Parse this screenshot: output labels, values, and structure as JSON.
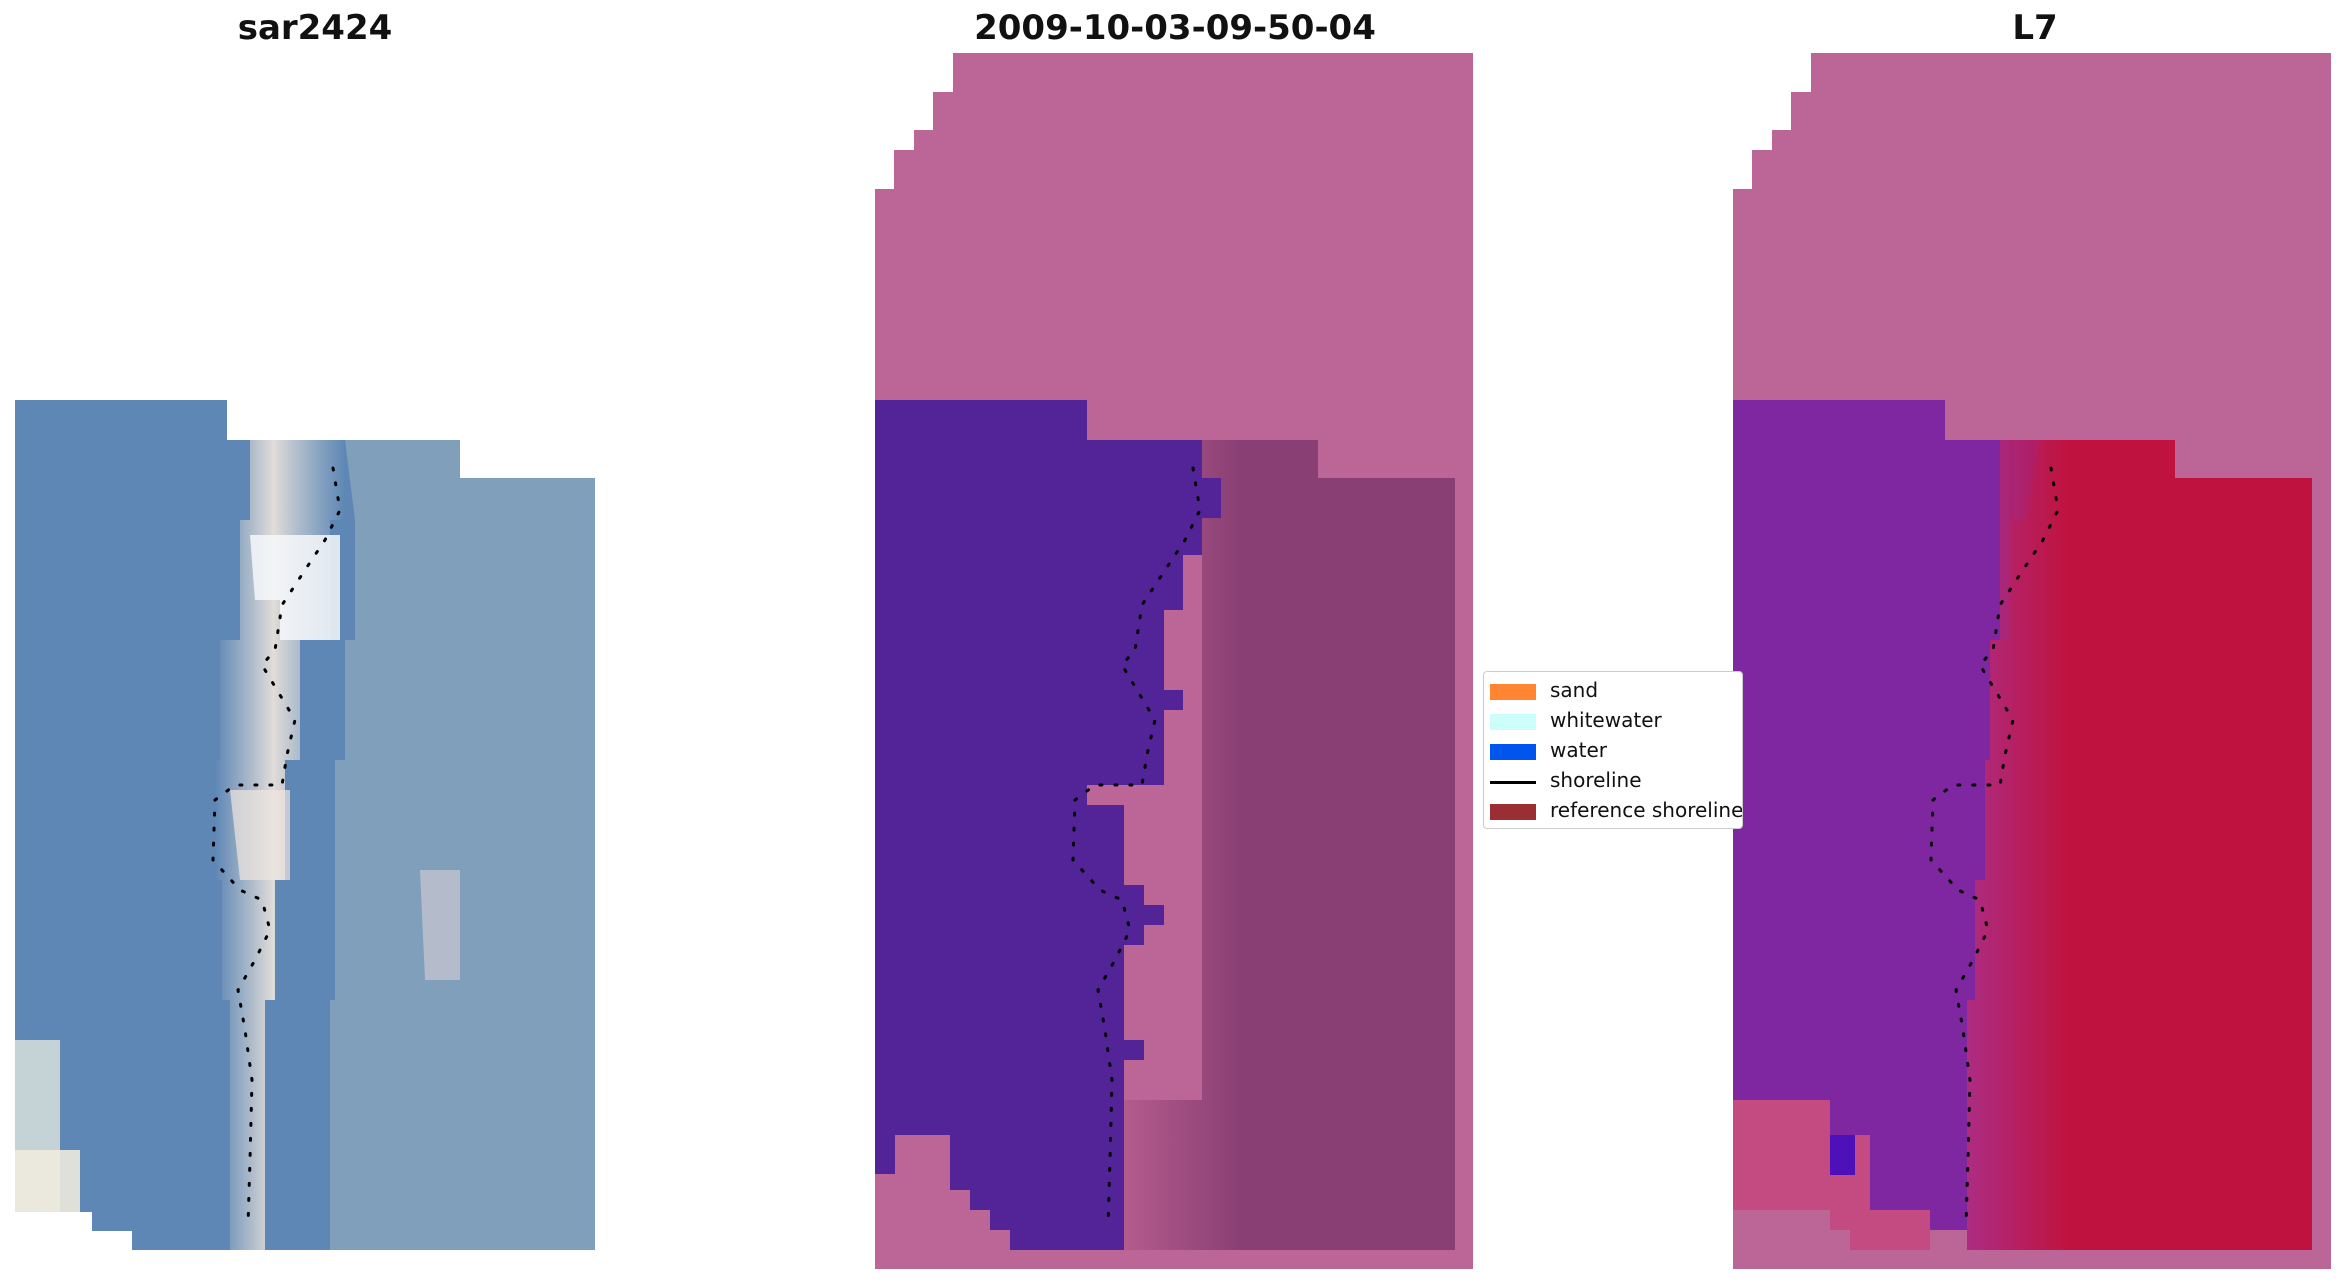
{
  "panels": [
    {
      "title": "sar2424"
    },
    {
      "title": "2009-10-03-09-50-04"
    },
    {
      "title": "L7"
    }
  ],
  "legend": {
    "items": [
      {
        "label": "sand",
        "color": "#ff8533",
        "kind": "patch"
      },
      {
        "label": "whitewater",
        "color": "#ccfffa",
        "kind": "patch"
      },
      {
        "label": "water",
        "color": "#0055ee",
        "kind": "patch"
      },
      {
        "label": "shoreline",
        "color": "#000000",
        "kind": "line"
      },
      {
        "label": "reference shoreline",
        "color": "#9b2e33",
        "kind": "patch"
      }
    ]
  },
  "colors": {
    "mask_pink": "#bc6698",
    "water_class": "#532398",
    "land_overlay": "#8a3f74",
    "sea_rgb": "#5b86b4",
    "purple_index": "#7e27a0",
    "red_index": "#c0123e",
    "shoreline": "#000000"
  }
}
